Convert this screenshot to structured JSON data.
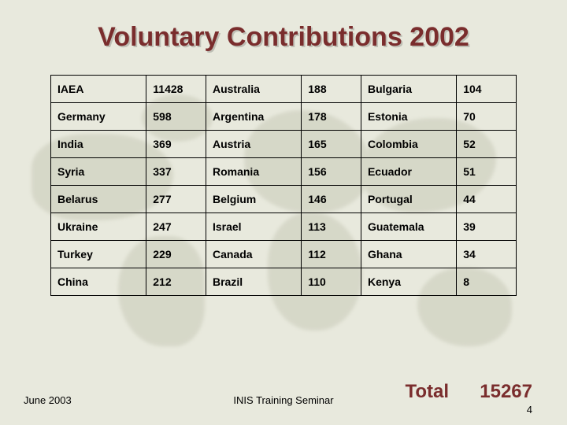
{
  "title": "Voluntary Contributions 2002",
  "table": {
    "type": "table",
    "columns": [
      "country_a",
      "value_a",
      "country_b",
      "value_b",
      "country_c",
      "value_c"
    ],
    "col_widths_pct": [
      20.5,
      12.8,
      20.5,
      12.8,
      20.5,
      12.8
    ],
    "border_color": "#000000",
    "cell_font_size_pt": 11,
    "cell_font_weight": 700,
    "rows": [
      [
        "IAEA",
        "11428",
        "Australia",
        "188",
        "Bulgaria",
        "104"
      ],
      [
        "Germany",
        "598",
        "Argentina",
        "178",
        "Estonia",
        "70"
      ],
      [
        "India",
        "369",
        "Austria",
        "165",
        "Colombia",
        "52"
      ],
      [
        "Syria",
        "337",
        "Romania",
        "156",
        "Ecuador",
        "51"
      ],
      [
        "Belarus",
        "277",
        "Belgium",
        "146",
        "Portugal",
        "44"
      ],
      [
        "Ukraine",
        "247",
        "Israel",
        "113",
        "Guatemala",
        "39"
      ],
      [
        "Turkey",
        "229",
        "Canada",
        "112",
        "Ghana",
        "34"
      ],
      [
        "China",
        "212",
        "Brazil",
        "110",
        "Kenya",
        "8"
      ]
    ]
  },
  "total": {
    "label": "Total",
    "value": "15267"
  },
  "footer": {
    "left": "June 2003",
    "center": "INIS Training Seminar",
    "slide_number": "4"
  },
  "colors": {
    "title_color": "#7a2d2d",
    "total_color": "#7a2d2d",
    "background": "#e8e9dd",
    "map_tint": "#b7b9a4",
    "text": "#000000"
  },
  "typography": {
    "title_fontsize_pt": 26,
    "title_fontweight": 700,
    "body_font": "Trebuchet MS",
    "cell_fontsize_pt": 11
  }
}
